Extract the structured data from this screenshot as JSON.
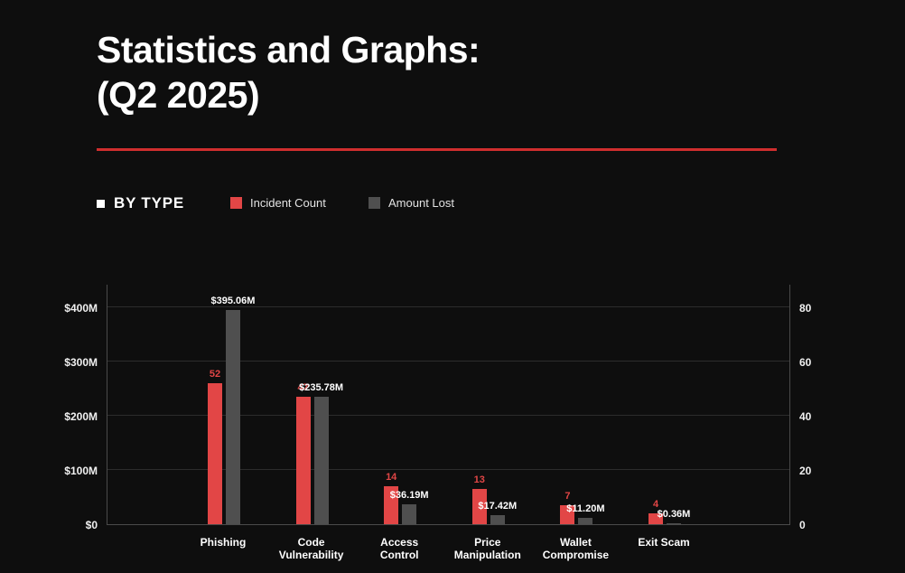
{
  "header": {
    "title_line1": "Statistics and Graphs:",
    "title_line2": "(Q2 2025)"
  },
  "section": {
    "label": "BY TYPE"
  },
  "legend": [
    {
      "label": "Incident Count",
      "color": "#e24646"
    },
    {
      "label": "Amount Lost",
      "color": "#4f4f4f"
    }
  ],
  "colors": {
    "background": "#0e0e0e",
    "divider": "#cf2e2e",
    "grid": "#2c2c2c",
    "axis": "#4a4a4a",
    "text": "#ffffff"
  },
  "chart_data": {
    "type": "bar",
    "title": "BY TYPE",
    "legend_position": "top",
    "grid": true,
    "categories": [
      "Phishing",
      "Code Vulnerability",
      "Access Control",
      "Price Manipulation",
      "Wallet Compromise",
      "Exit Scam"
    ],
    "category_label_lines": [
      [
        "Phishing"
      ],
      [
        "Code",
        "Vulnerability"
      ],
      [
        "Access",
        "Control"
      ],
      [
        "Price",
        "Manipulation"
      ],
      [
        "Wallet",
        "Compromise"
      ],
      [
        "Exit Scam"
      ]
    ],
    "series": [
      {
        "name": "Incident Count",
        "axis": "right",
        "unit": "incidents",
        "color": "#e24646",
        "values": [
          52,
          47,
          14,
          13,
          7,
          4
        ],
        "data_labels": [
          "52",
          "47",
          "14",
          "13",
          "7",
          "4"
        ]
      },
      {
        "name": "Amount Lost",
        "axis": "left",
        "unit": "USD_millions",
        "color": "#4f4f4f",
        "values": [
          395.06,
          235.78,
          36.19,
          17.42,
          11.2,
          0.36
        ],
        "data_labels": [
          "$395.06M",
          "$235.78M",
          "$36.19M",
          "$17.42M",
          "$11.20M",
          "$0.36M"
        ]
      }
    ],
    "left_axis": {
      "label_format": "USD millions",
      "ticks": [
        "$0",
        "$100M",
        "$200M",
        "$300M",
        "$400M"
      ],
      "tick_values": [
        0,
        100,
        200,
        300,
        400
      ],
      "ylim": [
        0,
        443
      ]
    },
    "right_axis": {
      "label_format": "count",
      "ticks": [
        "0",
        "20",
        "40",
        "60",
        "80"
      ],
      "tick_values": [
        0,
        20,
        40,
        60,
        80
      ],
      "ylim": [
        0,
        88.6
      ]
    }
  }
}
